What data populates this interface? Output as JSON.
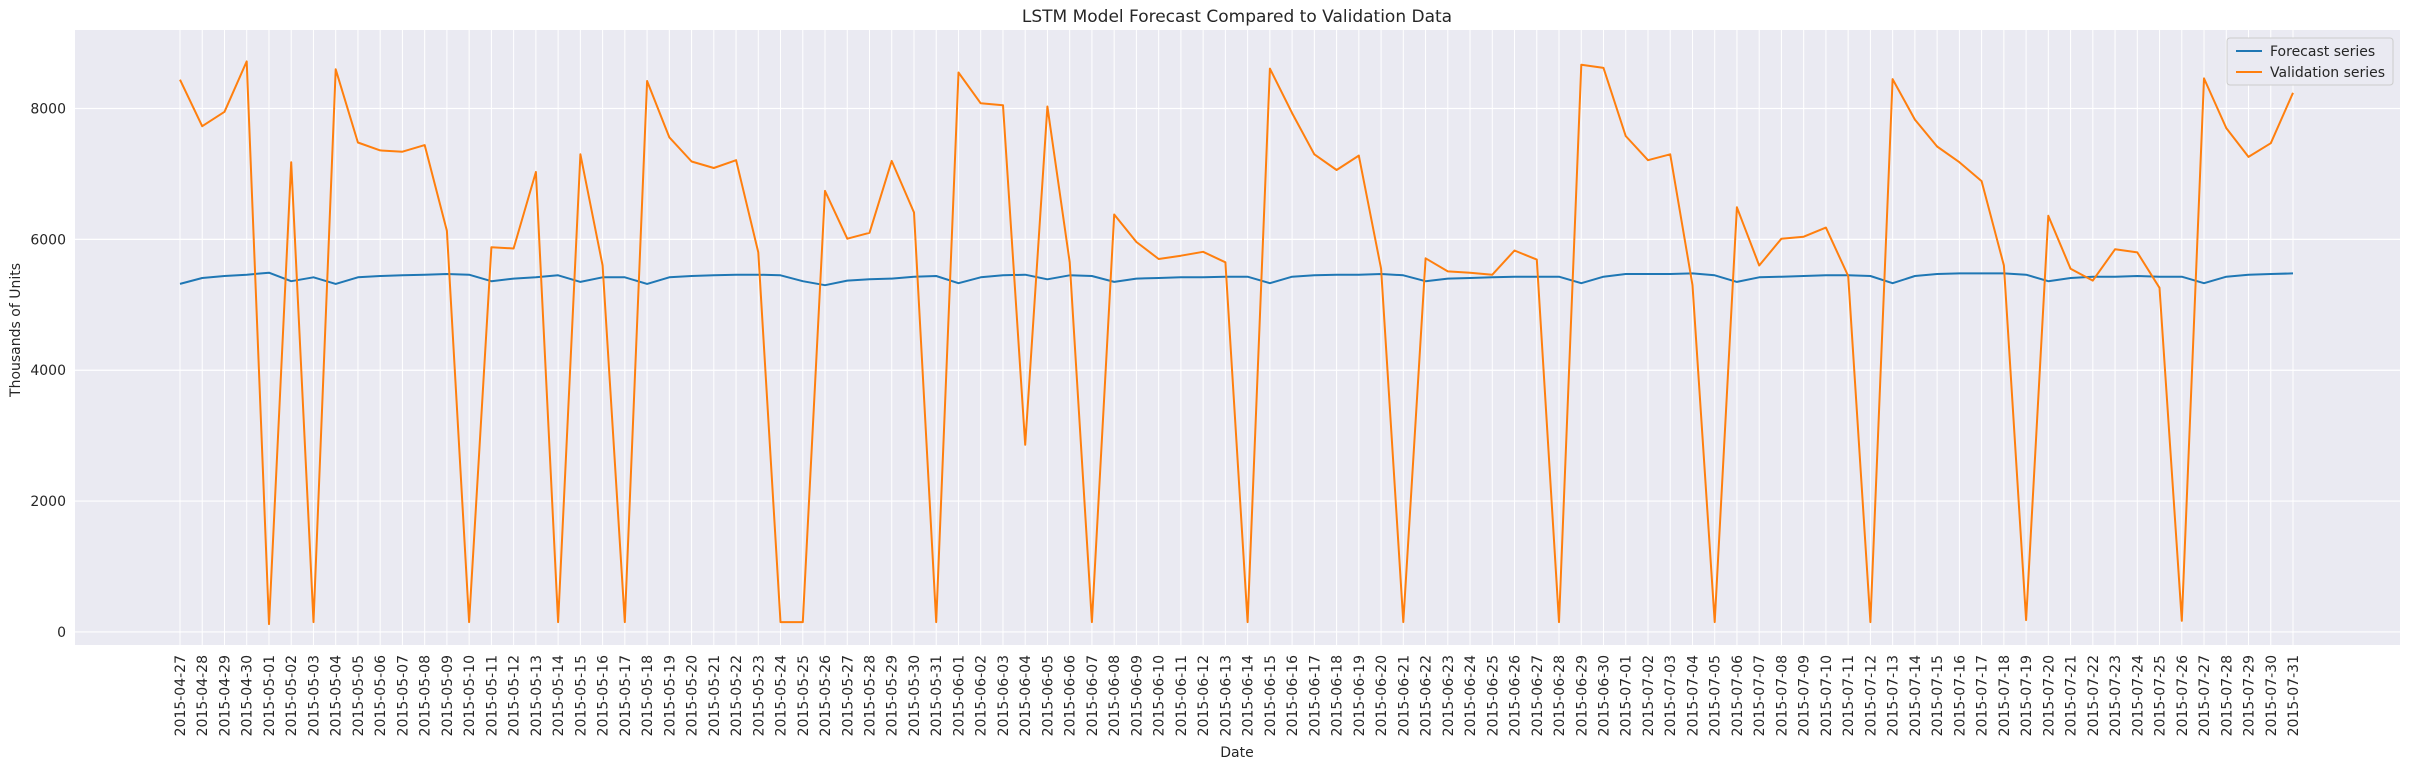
{
  "chart_data": {
    "type": "line",
    "title": "LSTM Model Forecast Compared to Validation Data",
    "xlabel": "Date",
    "ylabel": "Thousands of Units",
    "ylim": [
      -200,
      9200
    ],
    "yticks": [
      0,
      2000,
      4000,
      6000,
      8000
    ],
    "grid": true,
    "legend_position": "top-right",
    "x": [
      "2015-04-27",
      "2015-04-28",
      "2015-04-29",
      "2015-04-30",
      "2015-05-01",
      "2015-05-02",
      "2015-05-03",
      "2015-05-04",
      "2015-05-05",
      "2015-05-06",
      "2015-05-07",
      "2015-05-08",
      "2015-05-09",
      "2015-05-10",
      "2015-05-11",
      "2015-05-12",
      "2015-05-13",
      "2015-05-14",
      "2015-05-15",
      "2015-05-16",
      "2015-05-17",
      "2015-05-18",
      "2015-05-19",
      "2015-05-20",
      "2015-05-21",
      "2015-05-22",
      "2015-05-23",
      "2015-05-24",
      "2015-05-25",
      "2015-05-26",
      "2015-05-27",
      "2015-05-28",
      "2015-05-29",
      "2015-05-30",
      "2015-05-31",
      "2015-06-01",
      "2015-06-02",
      "2015-06-03",
      "2015-06-04",
      "2015-06-05",
      "2015-06-06",
      "2015-06-07",
      "2015-06-08",
      "2015-06-09",
      "2015-06-10",
      "2015-06-11",
      "2015-06-12",
      "2015-06-13",
      "2015-06-14",
      "2015-06-15",
      "2015-06-16",
      "2015-06-17",
      "2015-06-18",
      "2015-06-19",
      "2015-06-20",
      "2015-06-21",
      "2015-06-22",
      "2015-06-23",
      "2015-06-24",
      "2015-06-25",
      "2015-06-26",
      "2015-06-27",
      "2015-06-28",
      "2015-06-29",
      "2015-06-30",
      "2015-07-01",
      "2015-07-02",
      "2015-07-03",
      "2015-07-04",
      "2015-07-05",
      "2015-07-06",
      "2015-07-07",
      "2015-07-08",
      "2015-07-09",
      "2015-07-10",
      "2015-07-11",
      "2015-07-12",
      "2015-07-13",
      "2015-07-14",
      "2015-07-15",
      "2015-07-16",
      "2015-07-17",
      "2015-07-18",
      "2015-07-19",
      "2015-07-20",
      "2015-07-21",
      "2015-07-22",
      "2015-07-23",
      "2015-07-24",
      "2015-07-25",
      "2015-07-26",
      "2015-07-27",
      "2015-07-28",
      "2015-07-29",
      "2015-07-30",
      "2015-07-31"
    ],
    "series": [
      {
        "name": "Forecast series",
        "color": "#1f77b4",
        "values": [
          5320,
          5410,
          5440,
          5460,
          5490,
          5360,
          5420,
          5320,
          5420,
          5440,
          5450,
          5460,
          5470,
          5460,
          5360,
          5400,
          5420,
          5450,
          5350,
          5420,
          5420,
          5320,
          5420,
          5440,
          5450,
          5460,
          5460,
          5450,
          5360,
          5300,
          5370,
          5390,
          5400,
          5430,
          5440,
          5330,
          5420,
          5450,
          5460,
          5390,
          5450,
          5440,
          5350,
          5400,
          5410,
          5420,
          5420,
          5430,
          5430,
          5330,
          5430,
          5450,
          5460,
          5460,
          5470,
          5450,
          5360,
          5400,
          5410,
          5420,
          5430,
          5430,
          5430,
          5330,
          5430,
          5470,
          5470,
          5470,
          5480,
          5450,
          5350,
          5420,
          5430,
          5440,
          5450,
          5450,
          5440,
          5330,
          5440,
          5470,
          5480,
          5480,
          5480,
          5460,
          5360,
          5410,
          5430,
          5430,
          5440,
          5430,
          5430,
          5330,
          5430,
          5460,
          5470,
          5480
        ]
      },
      {
        "name": "Validation series",
        "color": "#ff7f0e",
        "values": [
          8440,
          7730,
          7950,
          8720,
          120,
          7180,
          150,
          8600,
          7480,
          7360,
          7340,
          7440,
          6130,
          150,
          5880,
          5860,
          7030,
          150,
          7300,
          5600,
          150,
          8420,
          7560,
          7190,
          7090,
          7210,
          5800,
          150,
          150,
          6740,
          6010,
          6100,
          7200,
          6410,
          150,
          8550,
          8080,
          8050,
          2860,
          8030,
          5650,
          150,
          6380,
          5960,
          5700,
          5750,
          5810,
          5650,
          150,
          8610,
          7930,
          7300,
          7060,
          7280,
          5550,
          150,
          5710,
          5510,
          5490,
          5460,
          5830,
          5690,
          150,
          8670,
          8620,
          7580,
          7210,
          7300,
          5300,
          150,
          6490,
          5600,
          6010,
          6040,
          6180,
          5440,
          150,
          8450,
          7830,
          7420,
          7180,
          6890,
          5600,
          180,
          6360,
          5550,
          5370,
          5850,
          5800,
          5260,
          170,
          8460,
          7700,
          7260,
          7470,
          8240
        ]
      }
    ]
  }
}
